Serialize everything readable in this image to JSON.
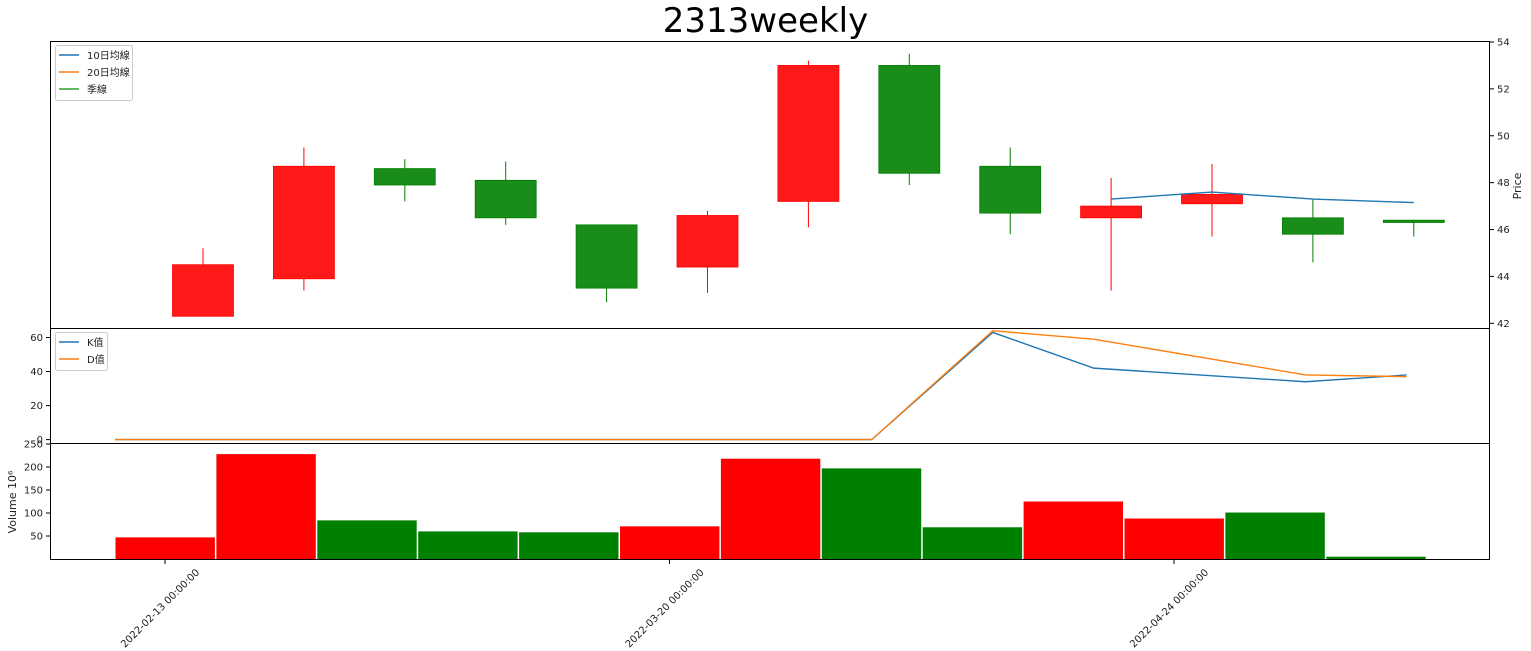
{
  "title": "2313weekly",
  "colors": {
    "up": "#ff0000",
    "down": "#008000",
    "ma10": "#1f77b4",
    "ma20": "#ff7f0e",
    "season": "#2ca02c",
    "k": "#1f77b4",
    "d": "#ff7f0e"
  },
  "chart_data": [
    {
      "type": "candlestick",
      "title": "2313weekly",
      "ylabel": "Price",
      "ylim": [
        41.8,
        54
      ],
      "yticks": [
        42,
        44,
        46,
        48,
        50,
        52,
        54
      ],
      "legend_position": "top-left",
      "legend": [
        "10日均線",
        "20日均線",
        "季線"
      ],
      "candles": [
        {
          "open": 42.3,
          "high": 45.2,
          "low": 42.3,
          "close": 44.5
        },
        {
          "open": 43.9,
          "high": 49.5,
          "low": 43.4,
          "close": 48.7
        },
        {
          "open": 48.6,
          "high": 49.0,
          "low": 47.2,
          "close": 47.9
        },
        {
          "open": 48.1,
          "high": 48.9,
          "low": 46.2,
          "close": 46.5
        },
        {
          "open": 46.2,
          "high": 46.2,
          "low": 42.9,
          "close": 43.5
        },
        {
          "open": 44.4,
          "high": 46.8,
          "low": 43.3,
          "close": 46.6
        },
        {
          "open": 47.2,
          "high": 53.2,
          "low": 46.1,
          "close": 53.0
        },
        {
          "open": 53.0,
          "high": 53.5,
          "low": 47.9,
          "close": 48.4
        },
        {
          "open": 48.7,
          "high": 49.5,
          "low": 45.8,
          "close": 46.7
        },
        {
          "open": 46.5,
          "high": 48.2,
          "low": 43.4,
          "close": 47.0
        },
        {
          "open": 47.1,
          "high": 48.8,
          "low": 45.7,
          "close": 47.5
        },
        {
          "open": 46.5,
          "high": 47.3,
          "low": 44.6,
          "close": 45.8
        },
        {
          "open": 46.4,
          "high": 46.4,
          "low": 45.7,
          "close": 46.3
        }
      ],
      "series": [
        {
          "name": "10日均線",
          "start_index": 9,
          "values": [
            47.3,
            47.6,
            47.3,
            47.15
          ]
        },
        {
          "name": "20日均線",
          "values": []
        },
        {
          "name": "季線",
          "values": []
        }
      ]
    },
    {
      "type": "line",
      "ylim": [
        -2,
        65
      ],
      "yticks": [
        0,
        20,
        40,
        60
      ],
      "legend_position": "top-left",
      "legend": [
        "K值",
        "D值"
      ],
      "x": [
        0,
        1,
        2,
        3,
        4,
        5,
        6,
        7,
        8,
        9,
        10,
        11,
        12,
        13
      ],
      "series": [
        {
          "name": "K值",
          "points": [
            [
              0,
              0
            ],
            [
              7.5,
              0
            ],
            [
              8.7,
              63
            ],
            [
              9.7,
              42
            ],
            [
              11.8,
              34
            ],
            [
              12.8,
              38
            ]
          ]
        },
        {
          "name": "D值",
          "points": [
            [
              0,
              0
            ],
            [
              7.5,
              0
            ],
            [
              8.7,
              64
            ],
            [
              9.7,
              59
            ],
            [
              11.8,
              38
            ],
            [
              12.8,
              37
            ]
          ]
        }
      ]
    },
    {
      "type": "bar",
      "ylabel": "Volume  10⁶",
      "ylim": [
        0,
        250
      ],
      "yticks": [
        50,
        100,
        150,
        200,
        250
      ],
      "values": [
        47,
        228,
        84,
        60,
        58,
        71,
        218,
        197,
        69,
        125,
        88,
        101,
        5
      ],
      "colors": [
        "up",
        "up",
        "down",
        "down",
        "down",
        "up",
        "up",
        "down",
        "down",
        "up",
        "up",
        "down",
        "down"
      ]
    }
  ],
  "xticks": [
    "2022-02-13 00:00:00",
    "2022-03-20 00:00:00",
    "2022-04-24 00:00:00"
  ]
}
